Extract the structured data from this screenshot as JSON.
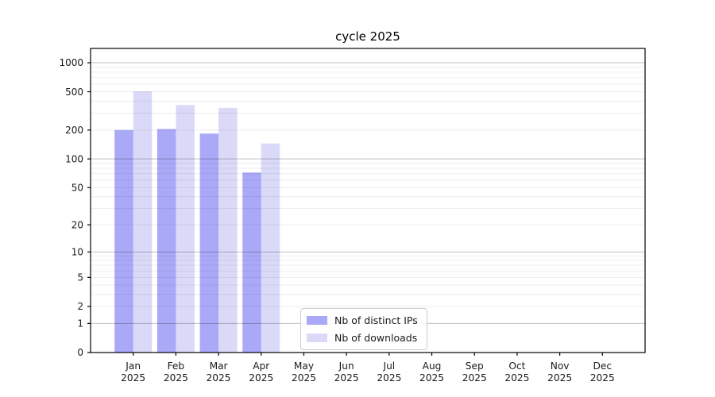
{
  "chart_data": {
    "type": "bar",
    "title": "cycle 2025",
    "yscale": "log1p",
    "grid": "major+minor, horizontal only",
    "yticks": [
      0,
      1,
      2,
      5,
      10,
      20,
      50,
      100,
      200,
      500,
      1000
    ],
    "ylim": [
      0,
      1400
    ],
    "months": [
      "Jan",
      "Feb",
      "Mar",
      "Apr",
      "May",
      "Jun",
      "Jul",
      "Aug",
      "Sep",
      "Oct",
      "Nov",
      "Dec"
    ],
    "year_label": "2025",
    "series": [
      {
        "name": "Nb of distinct IPs",
        "color": "#a9a9f8",
        "values": [
          200,
          205,
          184,
          72,
          0,
          0,
          0,
          0,
          0,
          0,
          0,
          0
        ]
      },
      {
        "name": "Nb of downloads",
        "color": "#dadaf8",
        "values": [
          505,
          364,
          340,
          145,
          0,
          0,
          0,
          0,
          0,
          0,
          0,
          0
        ]
      }
    ],
    "legend_position": "inside plot, lower center",
    "colors": {
      "major_grid": "#bfbfbf",
      "minor_grid": "#ededed",
      "axis": "#000000",
      "tick_text": "#1a1a1a"
    }
  }
}
